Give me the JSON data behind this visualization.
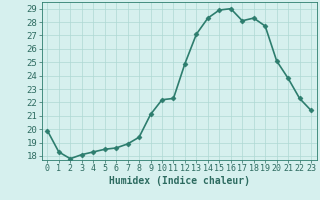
{
  "x_values": [
    0,
    1,
    2,
    3,
    4,
    5,
    6,
    7,
    8,
    9,
    10,
    11,
    12,
    13,
    14,
    15,
    16,
    17,
    18,
    19,
    20,
    21,
    22,
    23
  ],
  "y_values": [
    19.9,
    18.3,
    17.8,
    18.1,
    18.3,
    18.5,
    18.6,
    18.9,
    19.4,
    21.1,
    22.2,
    22.3,
    24.9,
    27.1,
    28.3,
    28.9,
    29.0,
    28.1,
    28.3,
    27.7,
    25.1,
    23.8,
    22.3,
    21.4
  ],
  "line_color": "#2d7d6e",
  "marker": "D",
  "markersize": 2.5,
  "bg_color": "#d6f0ee",
  "grid_color": "#aed8d4",
  "axis_color": "#2d7d6e",
  "xlabel": "Humidex (Indice chaleur)",
  "ytick_min": 18,
  "ytick_max": 29,
  "ytick_step": 1,
  "xtick_labels": [
    "0",
    "1",
    "2",
    "3",
    "4",
    "5",
    "6",
    "7",
    "8",
    "9",
    "10",
    "11",
    "12",
    "13",
    "14",
    "15",
    "16",
    "17",
    "18",
    "19",
    "20",
    "21",
    "22",
    "23"
  ],
  "linewidth": 1.2,
  "font_color": "#2d6b60",
  "font_size": 6.5,
  "xlabel_fontsize": 7.0
}
